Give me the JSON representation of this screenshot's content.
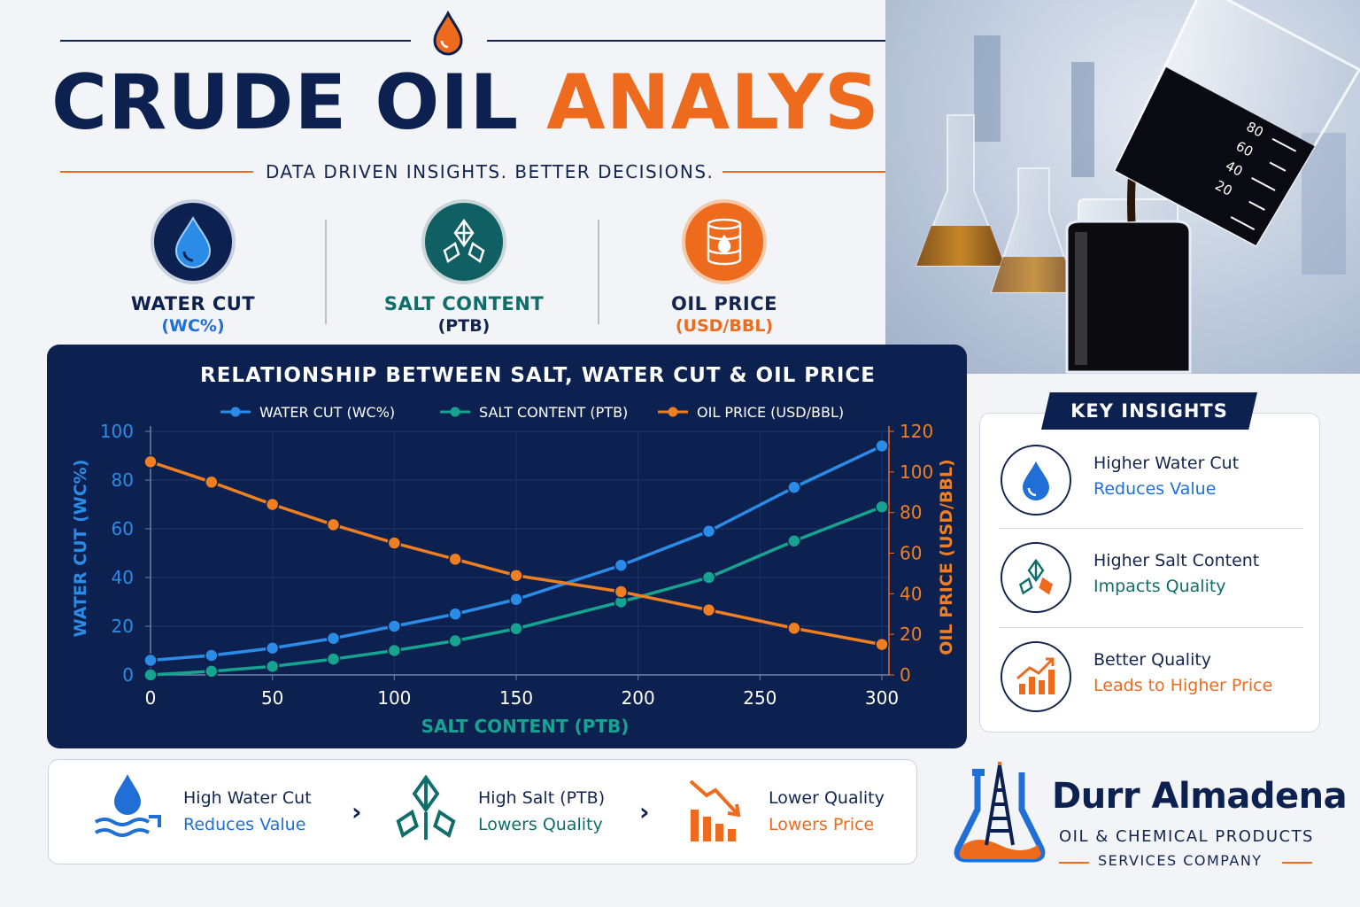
{
  "header": {
    "title_part1": "CRUDE OIL",
    "title_part2": "ANALYSIS",
    "subtitle": "DATA DRIVEN INSIGHTS. BETTER DECISIONS."
  },
  "metrics": [
    {
      "label": "WATER CUT",
      "unit": "(WC%)",
      "icon": "water-drop-icon",
      "color": "#0c2150",
      "unit_color": "#1f6fd6"
    },
    {
      "label": "SALT CONTENT",
      "unit": "(PTB)",
      "icon": "salt-crystal-icon",
      "color": "#0f6e6a",
      "unit_color": "#13254f"
    },
    {
      "label": "OIL PRICE",
      "unit": "(USD/BBL)",
      "icon": "oil-barrel-icon",
      "color": "#13254f",
      "unit_color": "#ee6b1e"
    }
  ],
  "chart_panel_title": "RELATIONSHIP BETWEEN SALT, WATER CUT & OIL PRICE",
  "chart_data": {
    "type": "line",
    "title": "RELATIONSHIP BETWEEN SALT, WATER CUT & OIL PRICE",
    "xlabel": "SALT CONTENT (PTB)",
    "ylabel_left": "WATER CUT (WC%)",
    "ylabel_right": "OIL PRICE (USD/BBL)",
    "xlim": [
      0,
      300
    ],
    "ylim_left": [
      0,
      100
    ],
    "ylim_right": [
      0,
      120
    ],
    "x_ticks": [
      "0",
      "50",
      "100",
      "150",
      "200",
      "250",
      "300"
    ],
    "y_left_ticks": [
      "0",
      "20",
      "40",
      "60",
      "80",
      "100"
    ],
    "y_right_ticks": [
      "0",
      "20",
      "40",
      "60",
      "80",
      "100",
      "120"
    ],
    "legend_position": "top",
    "grid": true,
    "x": [
      0,
      25,
      50,
      75,
      100,
      125,
      150,
      193,
      229,
      264,
      300
    ],
    "series": [
      {
        "name": "WATER CUT (WC%)",
        "axis": "left",
        "color": "#2b8ce8",
        "values": [
          6,
          8,
          11,
          15,
          20,
          25,
          31,
          45,
          59,
          77,
          94
        ]
      },
      {
        "name": "SALT CONTENT (PTB)",
        "axis": "left",
        "color": "#16a38f",
        "values": [
          0,
          1.5,
          3.5,
          6.5,
          10,
          14,
          19,
          30,
          40,
          55,
          69
        ]
      },
      {
        "name": "OIL PRICE (USD/BBL)",
        "axis": "right",
        "color": "#f07f22",
        "values": [
          105,
          95,
          84,
          74,
          65,
          57,
          49,
          41,
          32,
          23,
          15
        ]
      }
    ]
  },
  "insights": {
    "title": "KEY INSIGHTS",
    "items": [
      {
        "line1": "Higher Water Cut",
        "line2": "Reduces Value",
        "color": "#1f6fd6"
      },
      {
        "line1": "Higher Salt Content",
        "line2": "Impacts Quality",
        "color": "#0f6e6a"
      },
      {
        "line1": "Better Quality",
        "line2": "Leads to Higher Price",
        "color": "#ee6b1e"
      }
    ]
  },
  "flow": [
    {
      "line1": "High Water Cut",
      "line2": "Reduces Value",
      "color": "#1f6fd6"
    },
    {
      "line1": "High Salt (PTB)",
      "line2": "Lowers Quality",
      "color": "#0f6e6a"
    },
    {
      "line1": "Lower Quality",
      "line2": "Lowers Price",
      "color": "#ee6b1e"
    }
  ],
  "company": {
    "name": "Durr Almadena",
    "sub1": "OIL & CHEMICAL PRODUCTS",
    "sub2": "SERVICES COMPANY"
  },
  "beaker_marks": [
    "80",
    "60",
    "40",
    "20"
  ],
  "colors": {
    "navy": "#0c2150",
    "orange": "#ee6b1e",
    "blue": "#1f6fd6",
    "teal": "#0f6e6a"
  }
}
